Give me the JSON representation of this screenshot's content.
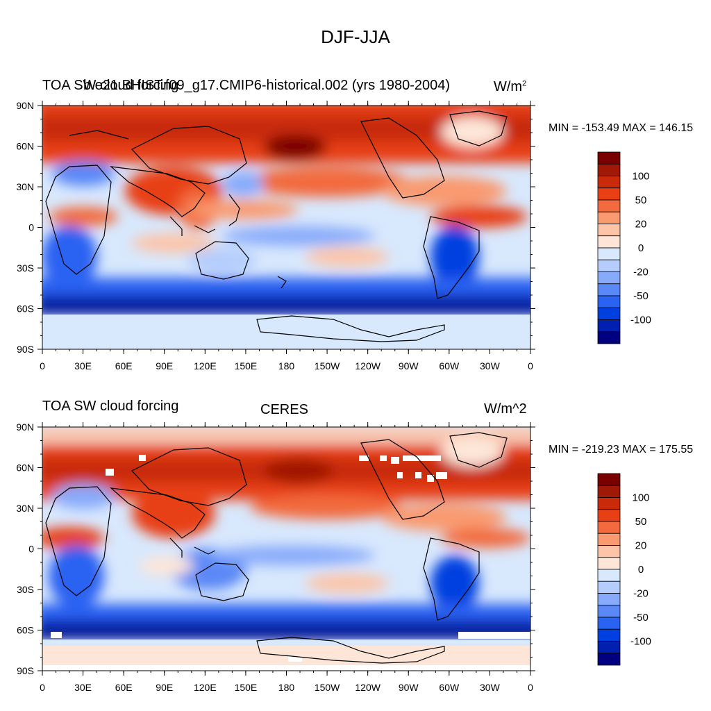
{
  "main_title": "DJF-JJA",
  "palette": [
    "#000080",
    "#0020b0",
    "#0040e0",
    "#2a62f2",
    "#5a88f6",
    "#88aafa",
    "#b4cdfd",
    "#d8e8fd",
    "#fde6d8",
    "#fdc4a8",
    "#f99a70",
    "#f26a3e",
    "#e84014",
    "#c82a0a",
    "#a01806",
    "#7a0000"
  ],
  "colorbar_labels": [
    "100",
    "50",
    "20",
    "0",
    "-20",
    "-50",
    "-100"
  ],
  "lat_ticks": [
    "90N",
    "60N",
    "30N",
    "0",
    "30S",
    "60S",
    "90S"
  ],
  "lon_ticks": [
    "0",
    "30E",
    "60E",
    "90E",
    "120E",
    "150E",
    "180",
    "150W",
    "120W",
    "90W",
    "60W",
    "30W",
    "0"
  ],
  "panels": [
    {
      "left_title": "TOA SW cloud forcing",
      "center_title": "b.e21.BHIST.f09_g17.CMIP6-historical.002 (yrs 1980-2004)",
      "units": "W/m",
      "units_sup": "2",
      "minmax": "MIN = -153.49 MAX = 146.15"
    },
    {
      "left_title": "TOA SW cloud forcing",
      "center_title": "CERES",
      "units": "W/m^2",
      "units_sup": "",
      "minmax": "MIN = -219.23 MAX = 175.55"
    }
  ]
}
